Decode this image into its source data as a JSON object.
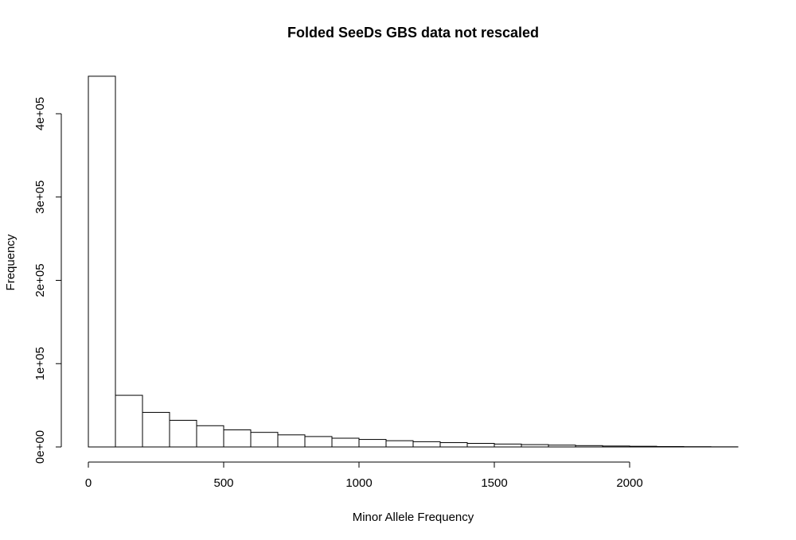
{
  "chart_data": {
    "type": "bar",
    "title": "Folded SeeDs GBS data not rescaled",
    "xlabel": "Minor Allele Frequency",
    "ylabel": "Frequency",
    "bin_width": 100,
    "bin_starts": [
      0,
      100,
      200,
      300,
      400,
      500,
      600,
      700,
      800,
      900,
      1000,
      1100,
      1200,
      1300,
      1400,
      1500,
      1600,
      1700,
      1800,
      1900,
      2000,
      2100,
      2200,
      2300
    ],
    "values": [
      445000,
      62000,
      41500,
      32000,
      25500,
      20500,
      17500,
      14500,
      12500,
      10500,
      9000,
      7500,
      6300,
      5200,
      4300,
      3500,
      2800,
      2200,
      1600,
      1100,
      800,
      500,
      300,
      150
    ],
    "xlim": [
      0,
      2400
    ],
    "ylim": [
      0,
      400000
    ],
    "x_ticks": [
      0,
      500,
      1000,
      1500,
      2000
    ],
    "x_tick_labels": [
      "0",
      "500",
      "1000",
      "1500",
      "2000"
    ],
    "y_ticks": [
      0,
      100000,
      200000,
      300000,
      400000
    ],
    "y_tick_labels": [
      "0e+00",
      "1e+05",
      "2e+05",
      "3e+05",
      "4e+05"
    ],
    "grid": false,
    "legend": "none"
  }
}
